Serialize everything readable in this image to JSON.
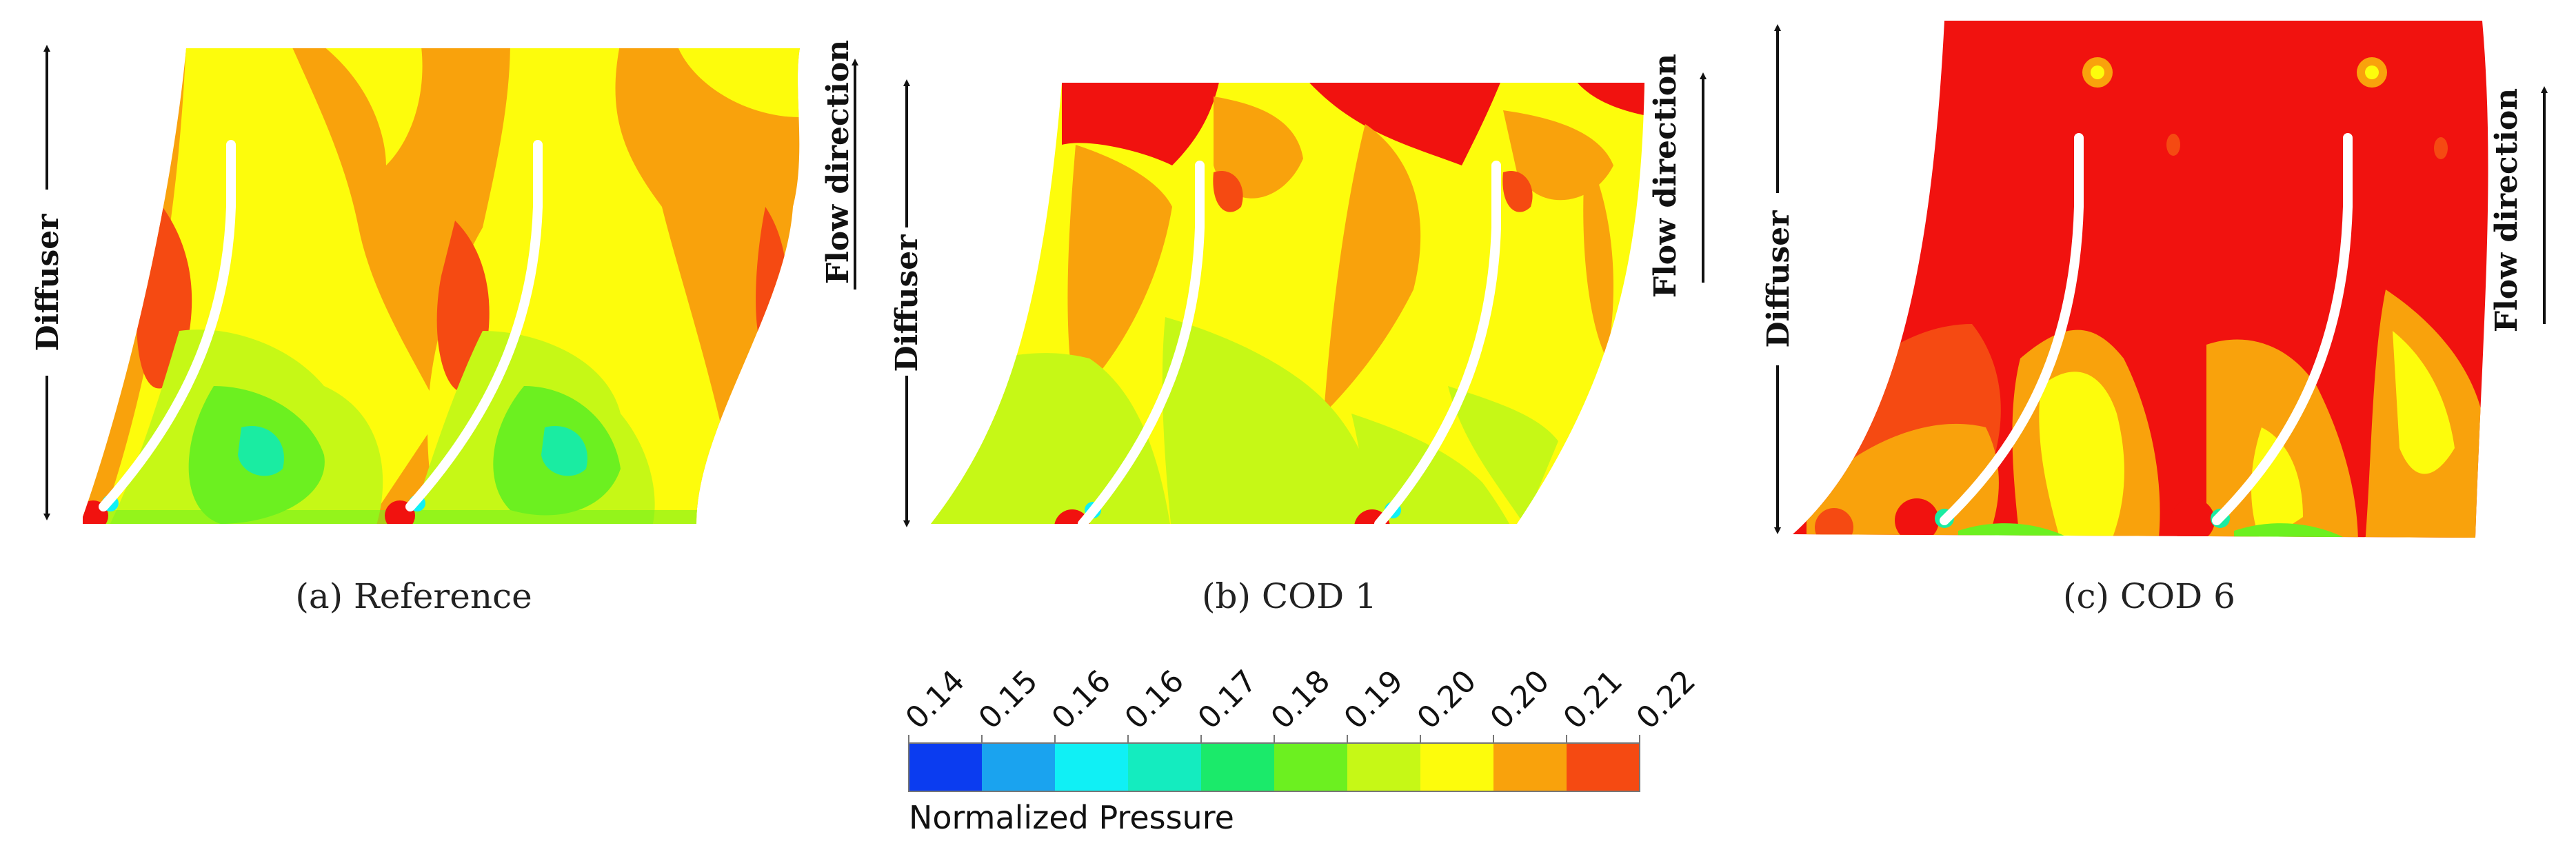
{
  "panels": [
    {
      "caption": "(a) Reference",
      "left_label": "Diffuser",
      "right_label": "Flow direction"
    },
    {
      "caption": "(b) COD 1",
      "left_label": "Diffuser",
      "right_label": "Flow direction"
    },
    {
      "caption": "(c) COD 6",
      "left_label": "Diffuser",
      "right_label": "Flow direction"
    }
  ],
  "colorbar": {
    "title": "Normalized Pressure",
    "ticks": [
      "0.14",
      "0.15",
      "0.16",
      "0.16",
      "0.17",
      "0.18",
      "0.19",
      "0.20",
      "0.20",
      "0.21",
      "0.22"
    ],
    "colors": [
      "#0b3cf0",
      "#1aa3ef",
      "#10f0f5",
      "#14ecbf",
      "#1bea6a",
      "#6cf020",
      "#c6f816",
      "#fdfc0c",
      "#f9a20c",
      "#f54a12"
    ]
  },
  "palette": {
    "red": "#f1120f",
    "red_orange": "#f54a12",
    "orange": "#f9a20c",
    "yellow": "#fdfc0c",
    "yellow_green": "#c6f816",
    "green": "#6cf020",
    "teal": "#1aeca2",
    "cyan": "#10f0f5",
    "blade": "#ffffff"
  }
}
